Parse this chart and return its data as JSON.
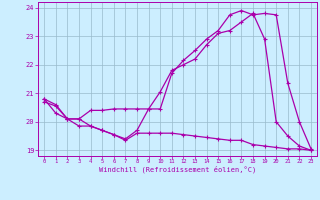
{
  "xlabel": "Windchill (Refroidissement éolien,°C)",
  "xlim": [
    -0.5,
    23.5
  ],
  "ylim": [
    18.8,
    24.2
  ],
  "yticks": [
    19,
    20,
    21,
    22,
    23,
    24
  ],
  "xticks": [
    0,
    1,
    2,
    3,
    4,
    5,
    6,
    7,
    8,
    9,
    10,
    11,
    12,
    13,
    14,
    15,
    16,
    17,
    18,
    19,
    20,
    21,
    22,
    23
  ],
  "bg_color": "#cceeff",
  "line_color": "#aa00aa",
  "grid_color": "#99bbcc",
  "line1_x": [
    0,
    1,
    2,
    3,
    4,
    5,
    6,
    7,
    8,
    9,
    10,
    11,
    12,
    13,
    14,
    15,
    16,
    17,
    18,
    19,
    20,
    21,
    22,
    23
  ],
  "line1_y": [
    20.8,
    20.6,
    20.1,
    20.1,
    20.4,
    20.4,
    20.45,
    20.45,
    20.45,
    20.45,
    20.45,
    21.7,
    22.15,
    22.5,
    22.9,
    23.2,
    23.75,
    23.9,
    23.75,
    23.8,
    23.75,
    21.35,
    20.0,
    19.05
  ],
  "line2_x": [
    0,
    1,
    2,
    3,
    4,
    5,
    6,
    7,
    8,
    9,
    10,
    11,
    12,
    13,
    14,
    15,
    16,
    17,
    18,
    19,
    20,
    21,
    22,
    23
  ],
  "line2_y": [
    20.8,
    20.3,
    20.1,
    20.1,
    19.85,
    19.7,
    19.55,
    19.4,
    19.7,
    20.45,
    21.05,
    21.8,
    22.0,
    22.2,
    22.7,
    23.1,
    23.2,
    23.5,
    23.8,
    22.9,
    20.0,
    19.5,
    19.15,
    19.0
  ],
  "line3_x": [
    0,
    1,
    2,
    3,
    4,
    5,
    6,
    7,
    8,
    9,
    10,
    11,
    12,
    13,
    14,
    15,
    16,
    17,
    18,
    19,
    20,
    21,
    22,
    23
  ],
  "line3_y": [
    20.7,
    20.55,
    20.1,
    19.85,
    19.85,
    19.7,
    19.55,
    19.35,
    19.6,
    19.6,
    19.6,
    19.6,
    19.55,
    19.5,
    19.45,
    19.4,
    19.35,
    19.35,
    19.2,
    19.15,
    19.1,
    19.05,
    19.05,
    19.0
  ]
}
